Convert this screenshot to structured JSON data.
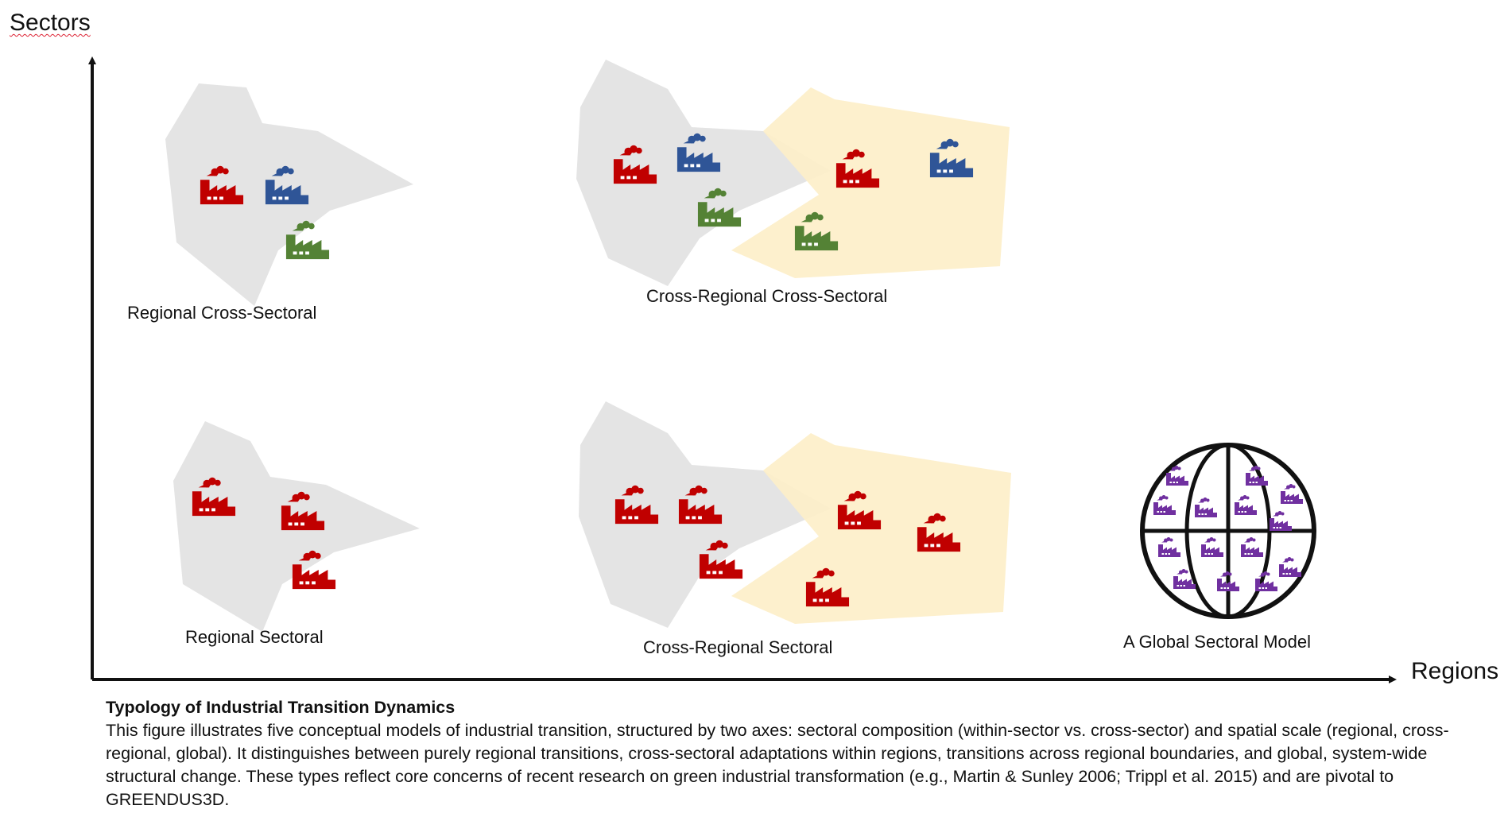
{
  "axes": {
    "y_label": "Sectors",
    "x_label": "Regions"
  },
  "panels": {
    "regional_cross_sectoral": "Regional Cross-Sectoral",
    "cross_regional_cross_sectoral": "Cross-Regional Cross-Sectoral",
    "regional_sectoral": "Regional Sectoral",
    "cross_regional_sectoral": "Cross-Regional Sectoral",
    "global_sectoral": "A Global Sectoral Model"
  },
  "caption": {
    "title": "Typology of Industrial Transition Dynamics",
    "body": "This figure illustrates five conceptual models of industrial transition, structured by two axes: sectoral composition (within-sector vs. cross-sector) and spatial scale (regional, cross-regional, global). It distinguishes between purely regional transitions, cross-sectoral adaptations within regions, transitions across regional boundaries, and global, system-wide structural change. These types reflect core concerns of recent research on green industrial transformation (e.g., Martin & Sunley 2006; Trippl et al. 2015) and are pivotal to GREENDUS3D."
  },
  "colors": {
    "region_a": "#e4e4e4",
    "region_b": "#fdefc9",
    "sector_red": "#c00000",
    "sector_blue": "#2f5597",
    "sector_green": "#548235",
    "global_purple": "#7030a0",
    "axis": "#111111"
  },
  "icons": {
    "factory": "factory-icon",
    "globe": "globe-icon"
  }
}
